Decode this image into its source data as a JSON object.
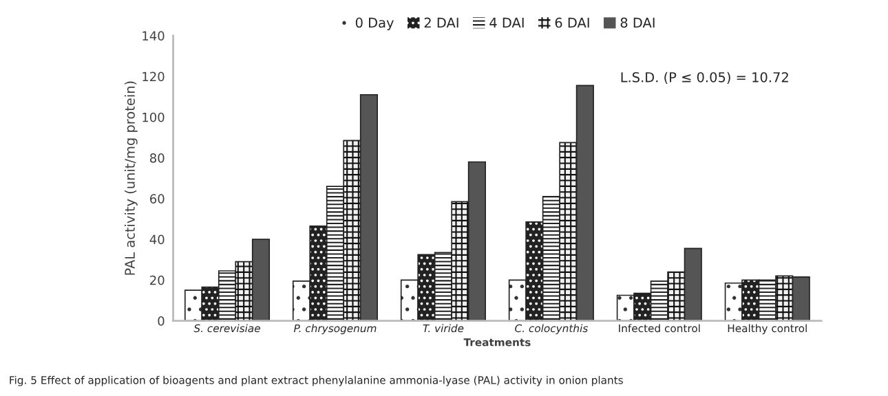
{
  "chart_data": {
    "type": "bar",
    "xlabel": "Treatments",
    "ylabel": "PAL activity (unit/mg protein)",
    "categories": [
      "S. cerevisiae",
      "P. chrysogenum",
      "T. viride",
      "C. colocynthis",
      "Infected control",
      "Healthy control"
    ],
    "series": [
      {
        "name": "0 Day",
        "color": "#ffffff",
        "values": [
          15,
          19.5,
          20,
          20,
          12.5,
          18.5
        ]
      },
      {
        "name": "2 DAI",
        "color": "#222222",
        "values": [
          16.5,
          46.5,
          32.5,
          48.5,
          13.5,
          20
        ]
      },
      {
        "name": "4 DAI",
        "color": "#ffffff",
        "values": [
          24.5,
          66,
          33.5,
          61,
          19.5,
          20
        ]
      },
      {
        "name": "6 DAI",
        "color": "#f0f0f0",
        "values": [
          29,
          88.5,
          58.5,
          87.5,
          24,
          22
        ]
      },
      {
        "name": "8 DAI",
        "color": "#555555",
        "values": [
          40,
          111,
          78,
          115.5,
          35.5,
          21.5
        ]
      }
    ],
    "ylim": [
      0,
      140
    ],
    "yticks": [
      0,
      20,
      40,
      60,
      80,
      100,
      120,
      140
    ],
    "grid": false,
    "legend": "top",
    "annotations": [
      {
        "text": "L.S.D. (P ≤ 0.05) = 10.72"
      },
      {
        "text": "Fig. 5 Effect of application of bioagents and plant extract phenylalanine ammonia-lyase (PAL) activity in onion plants"
      }
    ]
  }
}
